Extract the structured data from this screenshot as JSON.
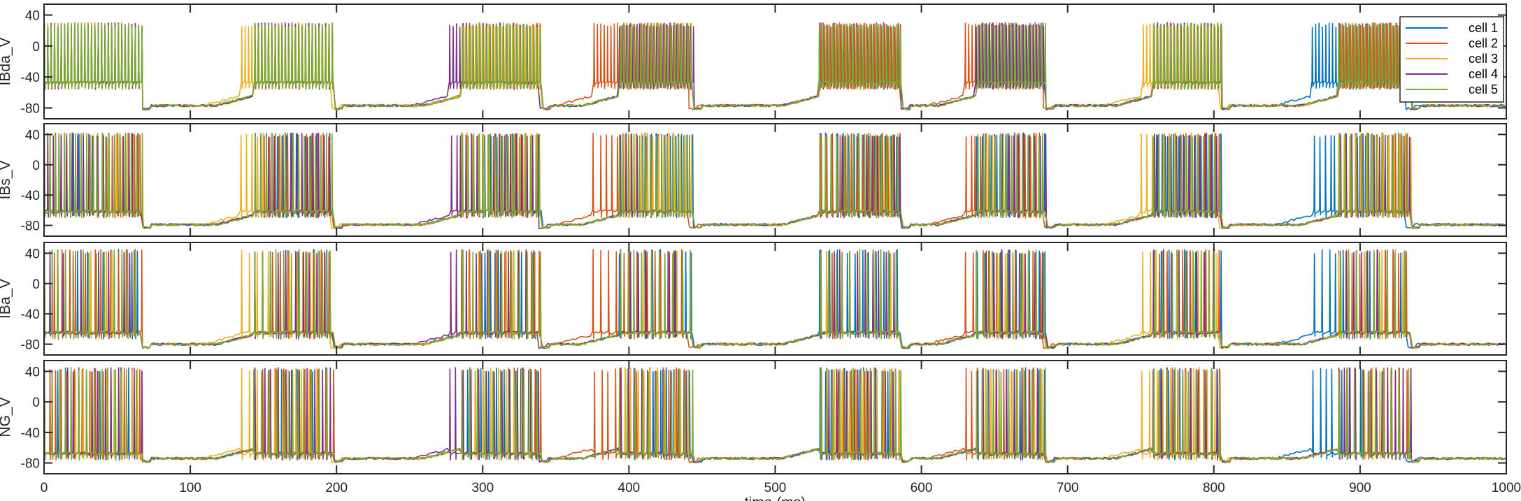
{
  "chart_data": {
    "type": "line",
    "xlabel": "time (ms)",
    "xlim": [
      0,
      1000
    ],
    "xticks": [
      0,
      100,
      200,
      300,
      400,
      500,
      600,
      700,
      800,
      900,
      1000
    ],
    "legend": {
      "placement": "top-right",
      "in_panel": 0
    },
    "series": [
      {
        "name": "cell 1",
        "color": "#0072BD",
        "burst_shift": [
          0,
          0,
          0,
          0,
          0,
          0,
          0,
          -18
        ],
        "seed": 11
      },
      {
        "name": "cell 2",
        "color": "#D95319",
        "burst_shift": [
          0,
          0,
          0,
          -18,
          0,
          -8,
          0,
          0
        ],
        "seed": 23
      },
      {
        "name": "cell 3",
        "color": "#EDB120",
        "burst_shift": [
          0,
          -9,
          0,
          0,
          0,
          0,
          -8,
          0
        ],
        "seed": 37
      },
      {
        "name": "cell 4",
        "color": "#7E2F8E",
        "burst_shift": [
          0,
          0,
          -8,
          0,
          0,
          0,
          0,
          0
        ],
        "seed": 41
      },
      {
        "name": "cell 5",
        "color": "#77AC30",
        "burst_shift": [
          0,
          0,
          0,
          0,
          0,
          0,
          0,
          0
        ],
        "seed": 53
      }
    ],
    "bursts": [
      [
        0,
        67
      ],
      [
        143,
        198
      ],
      [
        285,
        340
      ],
      [
        393,
        444
      ],
      [
        530,
        586
      ],
      [
        637,
        685
      ],
      [
        758,
        805
      ],
      [
        885,
        935
      ]
    ],
    "panels": [
      {
        "ylabel": "IBda_V",
        "ylim": [
          -85,
          45
        ],
        "yticks": [
          40,
          0,
          -40,
          -80
        ],
        "rest": -77,
        "plateau": -48,
        "peak": 30,
        "isi": 1.6,
        "burst_rest_gap": 3
      },
      {
        "ylabel": "IBs_V",
        "ylim": [
          -85,
          45
        ],
        "yticks": [
          40,
          0,
          -40,
          -80
        ],
        "rest": -79,
        "plateau": -62,
        "peak": 42,
        "isi": 3.0,
        "burst_rest_gap": 3
      },
      {
        "ylabel": "IBa_V",
        "ylim": [
          -85,
          45
        ],
        "yticks": [
          40,
          0,
          -40,
          -80
        ],
        "rest": -80,
        "plateau": -65,
        "peak": 45,
        "isi": 4.5,
        "burst_rest_gap": 3
      },
      {
        "ylabel": "NG_V",
        "ylim": [
          -85,
          45
        ],
        "yticks": [
          40,
          0,
          -40,
          -80
        ],
        "rest": -74,
        "plateau": -68,
        "peak": 45,
        "isi": 4.2,
        "burst_rest_gap": 3
      }
    ]
  }
}
